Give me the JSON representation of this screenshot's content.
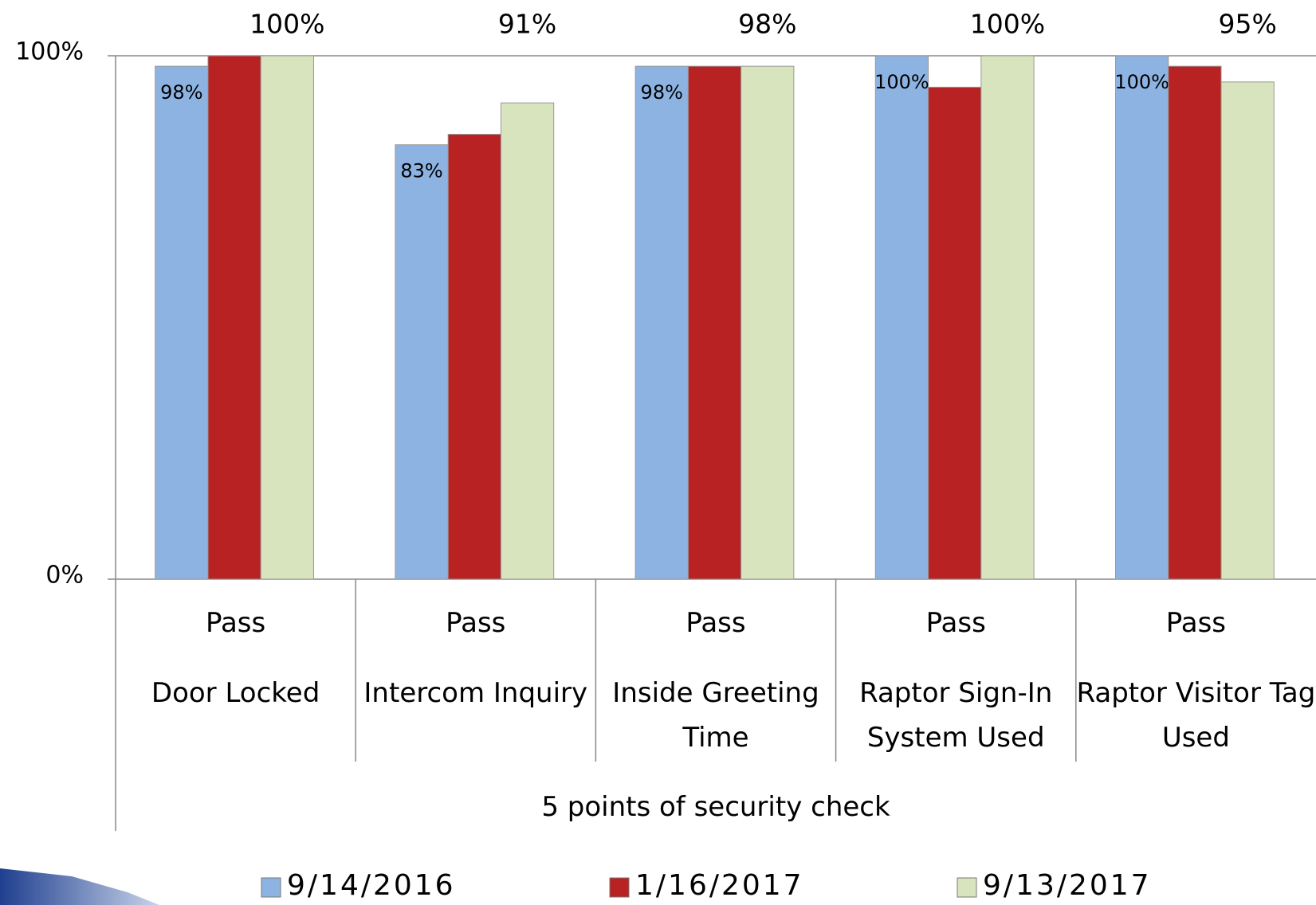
{
  "chart_data": {
    "type": "bar",
    "categories": [
      "Door Locked",
      "Intercom Inquiry",
      "Inside Greeting Time",
      "Raptor Sign-In System Used",
      "Raptor Visitor Tag Used"
    ],
    "group_labels": [
      "Pass",
      "Pass",
      "Pass",
      "Pass",
      "Pass"
    ],
    "xlabel": "5 points of security check",
    "series": [
      {
        "name": "9/14/2016",
        "color": "#8db3e2",
        "values": [
          98,
          83,
          98,
          100,
          100
        ],
        "value_labels": [
          "98%",
          "83%",
          "98%",
          "100%",
          "100%"
        ]
      },
      {
        "name": "1/16/2017",
        "color": "#b82222",
        "values": [
          100,
          85,
          98,
          94,
          98
        ]
      },
      {
        "name": "9/13/2017",
        "color": "#d7e4bd",
        "values": [
          100,
          91,
          98,
          100,
          95
        ],
        "value_labels": [
          "100%",
          "91%",
          "98%",
          "100%",
          "95%"
        ]
      }
    ],
    "ylim": [
      0,
      100
    ],
    "yticks": [
      {
        "value": 0,
        "label": "0%"
      },
      {
        "value": 100,
        "label": "100%"
      }
    ]
  }
}
